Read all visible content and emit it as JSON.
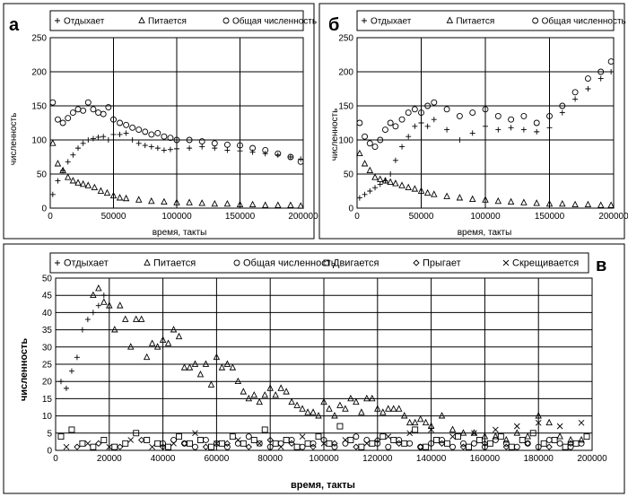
{
  "chart_data": [
    {
      "type": "scatter",
      "panel_label": "а",
      "legend": [
        "Отдыхает",
        "Питается",
        "Общая численность"
      ],
      "xlabel": "время, такты",
      "ylabel": "численность",
      "xlim": [
        0,
        200000
      ],
      "ylim": [
        0,
        250
      ],
      "xticks": [
        "0",
        "50000",
        "100000",
        "150000",
        "200000"
      ],
      "yticks": [
        "0",
        "50",
        "100",
        "150",
        "200",
        "250"
      ],
      "series": [
        {
          "name": "Отдыхает",
          "marker": "plus",
          "x": [
            2000,
            6000,
            10000,
            14000,
            18000,
            22000,
            26000,
            30000,
            34000,
            38000,
            42000,
            46000,
            50000,
            55000,
            60000,
            65000,
            70000,
            75000,
            80000,
            85000,
            90000,
            95000,
            100000,
            110000,
            120000,
            130000,
            140000,
            150000,
            160000,
            170000,
            180000,
            190000,
            198000
          ],
          "y": [
            20,
            40,
            55,
            68,
            78,
            88,
            95,
            100,
            102,
            104,
            105,
            100,
            108,
            108,
            110,
            100,
            95,
            92,
            90,
            88,
            85,
            86,
            87,
            88,
            90,
            88,
            85,
            84,
            82,
            80,
            78,
            75,
            72
          ]
        },
        {
          "name": "Питается",
          "marker": "triangle",
          "x": [
            2000,
            6000,
            10000,
            14000,
            18000,
            22000,
            26000,
            30000,
            35000,
            40000,
            45000,
            50000,
            55000,
            60000,
            70000,
            80000,
            90000,
            100000,
            110000,
            120000,
            130000,
            140000,
            150000,
            160000,
            170000,
            180000,
            190000,
            198000
          ],
          "y": [
            95,
            65,
            55,
            45,
            40,
            37,
            35,
            33,
            30,
            25,
            22,
            18,
            15,
            14,
            12,
            10,
            9,
            8,
            8,
            7,
            6,
            6,
            5,
            5,
            4,
            4,
            4,
            3
          ]
        },
        {
          "name": "Общая численность",
          "marker": "circle",
          "x": [
            2000,
            6000,
            10000,
            14000,
            18000,
            22000,
            26000,
            30000,
            34000,
            38000,
            42000,
            46000,
            50000,
            55000,
            60000,
            65000,
            70000,
            75000,
            80000,
            85000,
            90000,
            95000,
            100000,
            110000,
            120000,
            130000,
            140000,
            150000,
            160000,
            170000,
            180000,
            190000,
            198000
          ],
          "y": [
            155,
            130,
            125,
            132,
            140,
            145,
            143,
            155,
            145,
            140,
            138,
            148,
            130,
            125,
            122,
            118,
            115,
            112,
            108,
            110,
            105,
            103,
            100,
            100,
            98,
            95,
            93,
            92,
            88,
            85,
            80,
            75,
            68
          ]
        }
      ]
    },
    {
      "type": "scatter",
      "panel_label": "б",
      "legend": [
        "Отдыхает",
        "Питается",
        "Общая численность"
      ],
      "xlabel": "время, такты",
      "ylabel": "численность",
      "xlim": [
        0,
        200000
      ],
      "ylim": [
        0,
        250
      ],
      "xticks": [
        "0",
        "50000",
        "100000",
        "150000",
        "200000"
      ],
      "yticks": [
        "0",
        "50",
        "100",
        "150",
        "200",
        "250"
      ],
      "series": [
        {
          "name": "Отдыхает",
          "marker": "plus",
          "x": [
            2000,
            6000,
            10000,
            14000,
            18000,
            22000,
            26000,
            30000,
            35000,
            40000,
            45000,
            50000,
            55000,
            60000,
            70000,
            80000,
            90000,
            100000,
            110000,
            120000,
            130000,
            140000,
            150000,
            160000,
            170000,
            180000,
            190000,
            198000
          ],
          "y": [
            15,
            20,
            25,
            30,
            35,
            40,
            50,
            70,
            90,
            105,
            120,
            125,
            120,
            130,
            115,
            100,
            110,
            120,
            115,
            118,
            115,
            112,
            118,
            140,
            160,
            175,
            190,
            200
          ]
        },
        {
          "name": "Питается",
          "marker": "triangle",
          "x": [
            2000,
            6000,
            10000,
            14000,
            18000,
            22000,
            26000,
            30000,
            35000,
            40000,
            45000,
            50000,
            55000,
            60000,
            70000,
            80000,
            90000,
            100000,
            110000,
            120000,
            130000,
            140000,
            150000,
            160000,
            170000,
            180000,
            190000,
            198000
          ],
          "y": [
            80,
            65,
            55,
            45,
            42,
            40,
            38,
            36,
            33,
            30,
            28,
            25,
            22,
            20,
            17,
            15,
            13,
            12,
            10,
            9,
            8,
            7,
            6,
            6,
            5,
            5,
            4,
            4
          ]
        },
        {
          "name": "Общая численность",
          "marker": "circle",
          "x": [
            2000,
            6000,
            10000,
            14000,
            18000,
            22000,
            26000,
            30000,
            35000,
            40000,
            45000,
            50000,
            55000,
            60000,
            70000,
            80000,
            90000,
            100000,
            110000,
            120000,
            130000,
            140000,
            150000,
            160000,
            170000,
            180000,
            190000,
            198000
          ],
          "y": [
            125,
            105,
            95,
            90,
            100,
            115,
            125,
            120,
            130,
            140,
            145,
            140,
            150,
            155,
            145,
            135,
            140,
            145,
            135,
            130,
            135,
            125,
            135,
            150,
            170,
            190,
            200,
            215
          ]
        }
      ]
    },
    {
      "type": "scatter",
      "panel_label": "в",
      "legend": [
        "Отдыхает",
        "Питается",
        "Общая численность",
        "Двигается",
        "Прыгает",
        "Скрещивается"
      ],
      "xlabel": "время, такты",
      "ylabel": "численность",
      "xlim": [
        0,
        200000
      ],
      "ylim": [
        0,
        50
      ],
      "xticks": [
        "0",
        "20000",
        "40000",
        "60000",
        "80000",
        "100000",
        "120000",
        "140000",
        "160000",
        "180000",
        "200000"
      ],
      "yticks": [
        "0",
        "5",
        "10",
        "15",
        "20",
        "25",
        "30",
        "35",
        "40",
        "45",
        "50"
      ],
      "series": [
        {
          "name": "Отдыхает",
          "marker": "plus",
          "x": [
            2000,
            4000,
            6000,
            8000,
            10000,
            12000,
            14000,
            16000,
            18000
          ],
          "y": [
            20,
            18,
            23,
            27,
            35,
            38,
            40,
            42,
            45
          ]
        },
        {
          "name": "Питается",
          "marker": "triangle",
          "x": [
            14000,
            16000,
            18000,
            20000,
            22000,
            24000,
            26000,
            28000,
            30000,
            32000,
            34000,
            36000,
            38000,
            40000,
            42000,
            44000,
            46000,
            48000,
            50000,
            52000,
            54000,
            56000,
            58000,
            60000,
            62000,
            64000,
            66000,
            68000,
            70000,
            72000,
            74000,
            76000,
            78000,
            80000,
            82000,
            84000,
            86000,
            88000,
            90000,
            92000,
            94000,
            96000,
            98000,
            100000,
            102000,
            104000,
            106000,
            108000,
            110000,
            112000,
            114000,
            116000,
            118000,
            120000,
            122000,
            124000,
            126000,
            128000,
            130000,
            132000,
            134000,
            136000,
            138000,
            140000,
            144000,
            148000,
            152000,
            156000,
            160000,
            164000,
            168000,
            172000,
            176000,
            180000,
            184000,
            188000,
            192000,
            196000
          ],
          "y": [
            45,
            47,
            43,
            42,
            35,
            42,
            38,
            30,
            38,
            38,
            27,
            31,
            30,
            32,
            31,
            35,
            33,
            24,
            24,
            25,
            22,
            25,
            19,
            27,
            24,
            25,
            24,
            20,
            17,
            15,
            16,
            14,
            16,
            18,
            16,
            18,
            17,
            14,
            13,
            12,
            11,
            11,
            10,
            14,
            12,
            10,
            13,
            12,
            15,
            14,
            11,
            15,
            15,
            12,
            11,
            12,
            12,
            12,
            10,
            8,
            8,
            9,
            8,
            7,
            10,
            6,
            5,
            5,
            4,
            4,
            3,
            5,
            4,
            10,
            8,
            4,
            3,
            3
          ]
        },
        {
          "name": "Общая численность",
          "marker": "circle",
          "x": [
            40000,
            44000,
            48000,
            52000,
            56000,
            60000,
            64000,
            68000,
            72000,
            76000,
            80000,
            84000,
            88000,
            92000,
            96000,
            100000,
            104000,
            108000,
            112000,
            116000,
            120000,
            124000,
            128000,
            132000,
            136000,
            140000,
            144000,
            148000,
            152000,
            156000,
            160000,
            164000,
            168000,
            172000,
            176000,
            180000,
            184000,
            188000,
            192000,
            196000
          ],
          "y": [
            2,
            3,
            2,
            1,
            3,
            2,
            1,
            2,
            4,
            2,
            1,
            2,
            3,
            1,
            2,
            3,
            1,
            2,
            4,
            3,
            2,
            1,
            3,
            2,
            1,
            2,
            3,
            1,
            2,
            2,
            1,
            3,
            2,
            1,
            2,
            1,
            3,
            2,
            1,
            2
          ]
        },
        {
          "name": "Двигается",
          "marker": "square",
          "x": [
            2000,
            6000,
            10000,
            14000,
            18000,
            22000,
            26000,
            30000,
            34000,
            38000,
            42000,
            46000,
            50000,
            54000,
            58000,
            62000,
            66000,
            70000,
            74000,
            78000,
            82000,
            86000,
            90000,
            94000,
            98000,
            102000,
            106000,
            110000,
            114000,
            118000,
            122000,
            126000,
            130000,
            134000,
            138000,
            142000,
            146000,
            150000,
            154000,
            158000,
            162000,
            166000,
            170000,
            174000,
            178000,
            182000,
            186000,
            190000,
            194000,
            198000
          ],
          "y": [
            4,
            6,
            2,
            1,
            3,
            1,
            2,
            5,
            3,
            2,
            1,
            4,
            2,
            3,
            1,
            2,
            4,
            2,
            3,
            6,
            2,
            3,
            1,
            2,
            4,
            2,
            7,
            3,
            1,
            2,
            4,
            3,
            2,
            6,
            1,
            3,
            2,
            4,
            1,
            3,
            2,
            4,
            1,
            3,
            5,
            2,
            3,
            1,
            2,
            4
          ]
        },
        {
          "name": "Прыгает",
          "marker": "diamond",
          "x": [
            8000,
            16000,
            24000,
            32000,
            40000,
            48000,
            56000,
            64000,
            72000,
            80000,
            88000,
            96000,
            104000,
            112000,
            120000,
            128000,
            136000,
            144000,
            152000,
            160000,
            168000,
            176000,
            184000,
            192000
          ],
          "y": [
            1,
            2,
            1,
            3,
            1,
            2,
            1,
            2,
            1,
            3,
            2,
            1,
            2,
            1,
            3,
            2,
            1,
            2,
            1,
            2,
            1,
            2,
            1,
            2
          ]
        },
        {
          "name": "Скрещивается",
          "marker": "cross",
          "x": [
            4000,
            12000,
            20000,
            28000,
            36000,
            44000,
            52000,
            60000,
            68000,
            76000,
            84000,
            92000,
            100000,
            108000,
            116000,
            124000,
            132000,
            140000,
            148000,
            156000,
            164000,
            172000,
            180000,
            188000,
            196000
          ],
          "y": [
            1,
            2,
            1,
            3,
            1,
            2,
            5,
            2,
            3,
            2,
            1,
            4,
            2,
            3,
            2,
            4,
            5,
            6,
            4,
            5,
            6,
            7,
            8,
            7,
            8
          ]
        }
      ]
    }
  ]
}
